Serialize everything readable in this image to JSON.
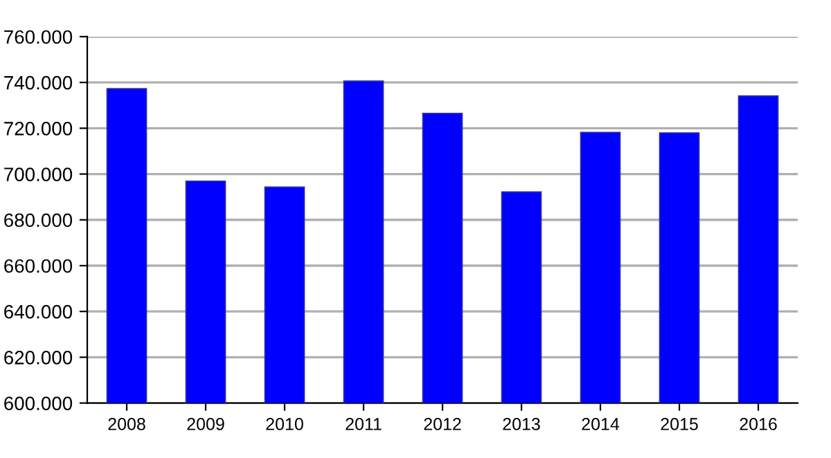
{
  "chart_data": {
    "type": "bar",
    "categories": [
      "2008",
      "2009",
      "2010",
      "2011",
      "2012",
      "2013",
      "2014",
      "2015",
      "2016"
    ],
    "values": [
      737300,
      696900,
      694300,
      740600,
      726500,
      692200,
      718200,
      718000,
      734100
    ],
    "color": "#0000ff",
    "ylim": [
      600000,
      760000
    ],
    "yticks": [
      {
        "value": 600000,
        "label": "600.000"
      },
      {
        "value": 620000,
        "label": "620.000"
      },
      {
        "value": 640000,
        "label": "640.000"
      },
      {
        "value": 660000,
        "label": "660.000"
      },
      {
        "value": 680000,
        "label": "680.000"
      },
      {
        "value": 700000,
        "label": "700.000"
      },
      {
        "value": 720000,
        "label": "720.000"
      },
      {
        "value": 740000,
        "label": "740.000"
      },
      {
        "value": 760000,
        "label": "760.000"
      }
    ],
    "grid": "y"
  }
}
